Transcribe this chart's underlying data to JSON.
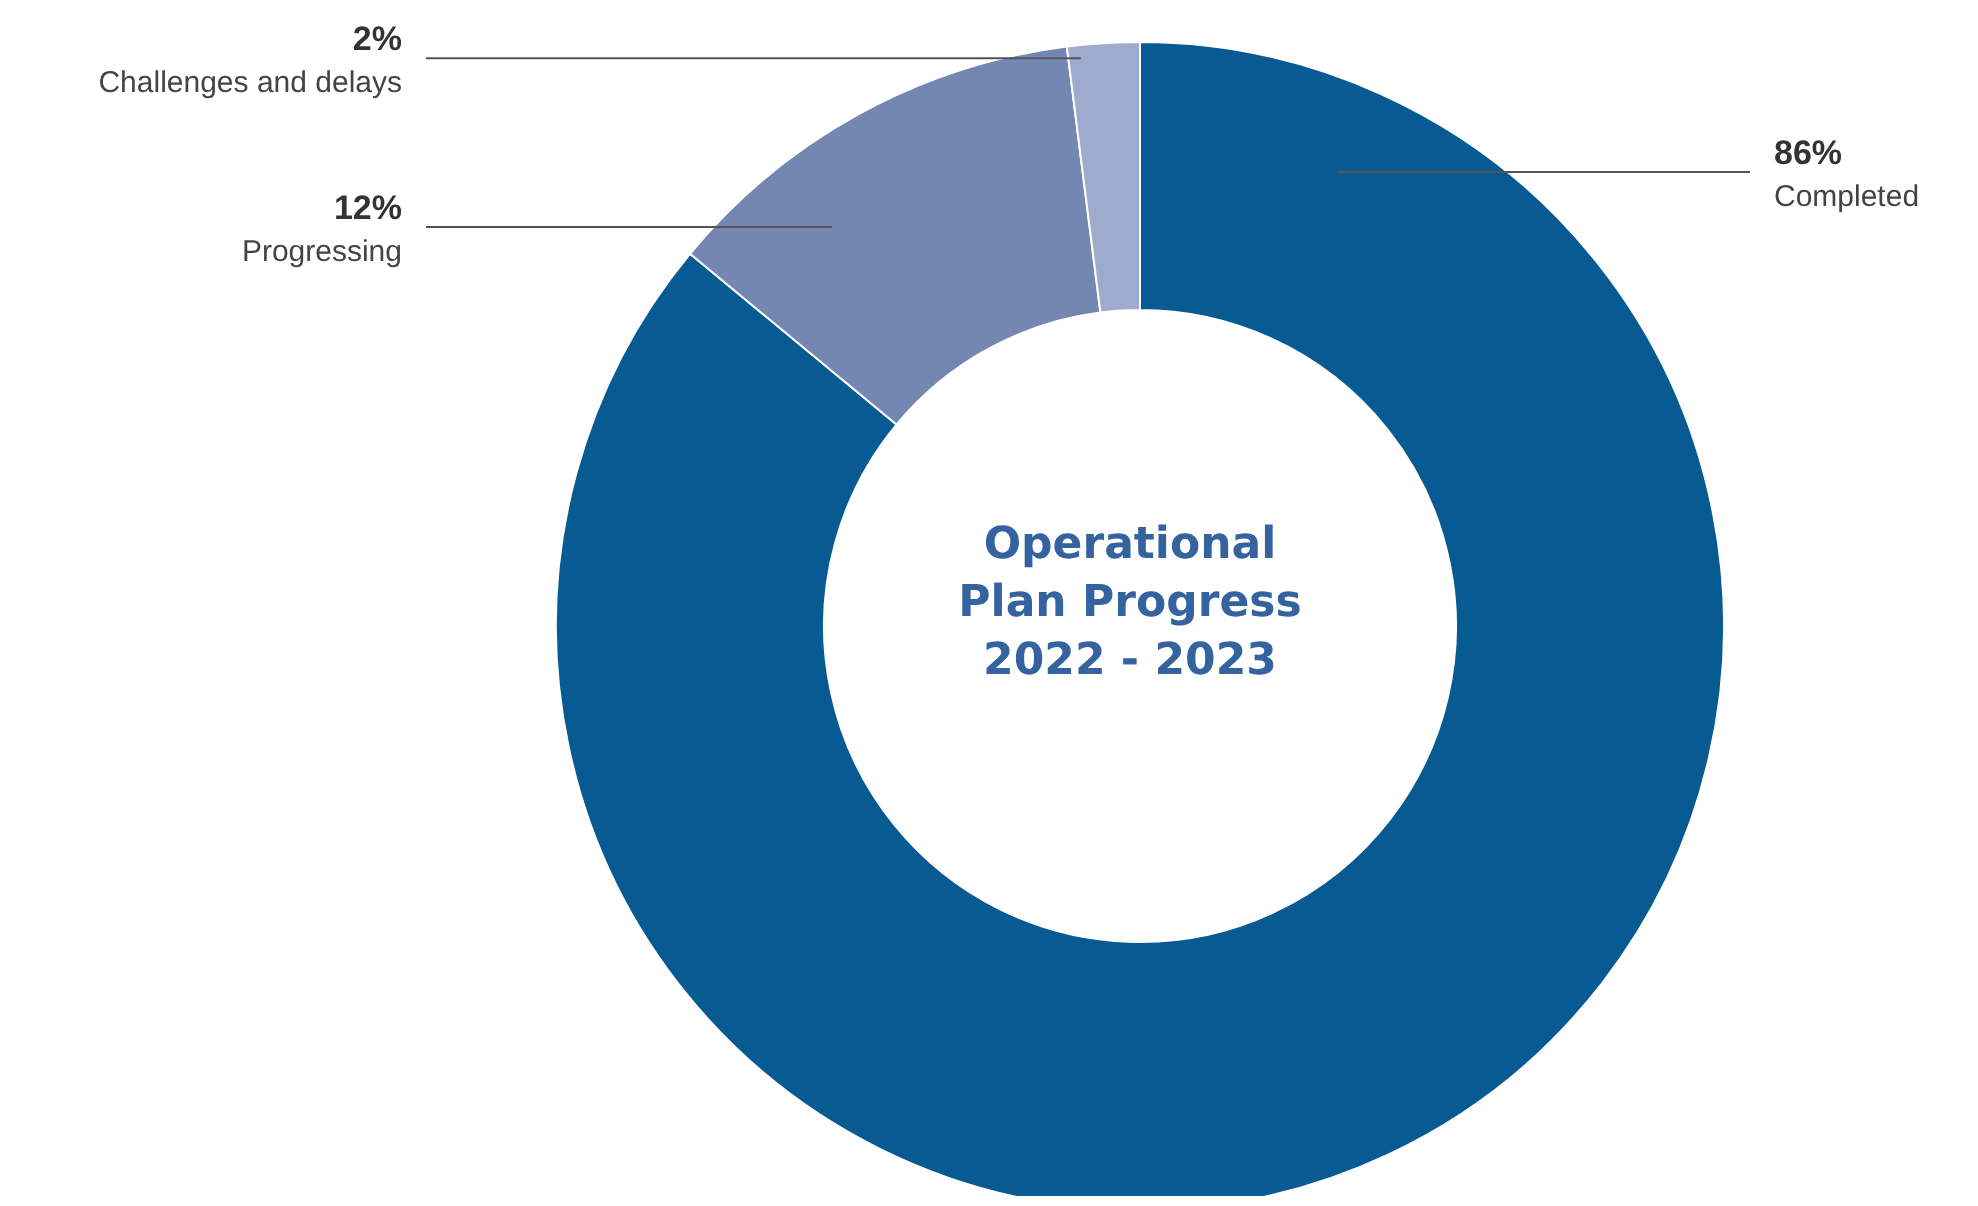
{
  "chart_data": {
    "type": "donut",
    "title": "Operational Plan Progress 2022 - 2023",
    "categories": [
      "Completed",
      "Progressing",
      "Challenges and delays"
    ],
    "values": [
      86,
      12,
      2
    ],
    "colors": [
      "#075a92",
      "#7487b3",
      "#9eabcd"
    ],
    "value_labels": [
      "86%",
      "12%",
      "2%"
    ]
  }
}
